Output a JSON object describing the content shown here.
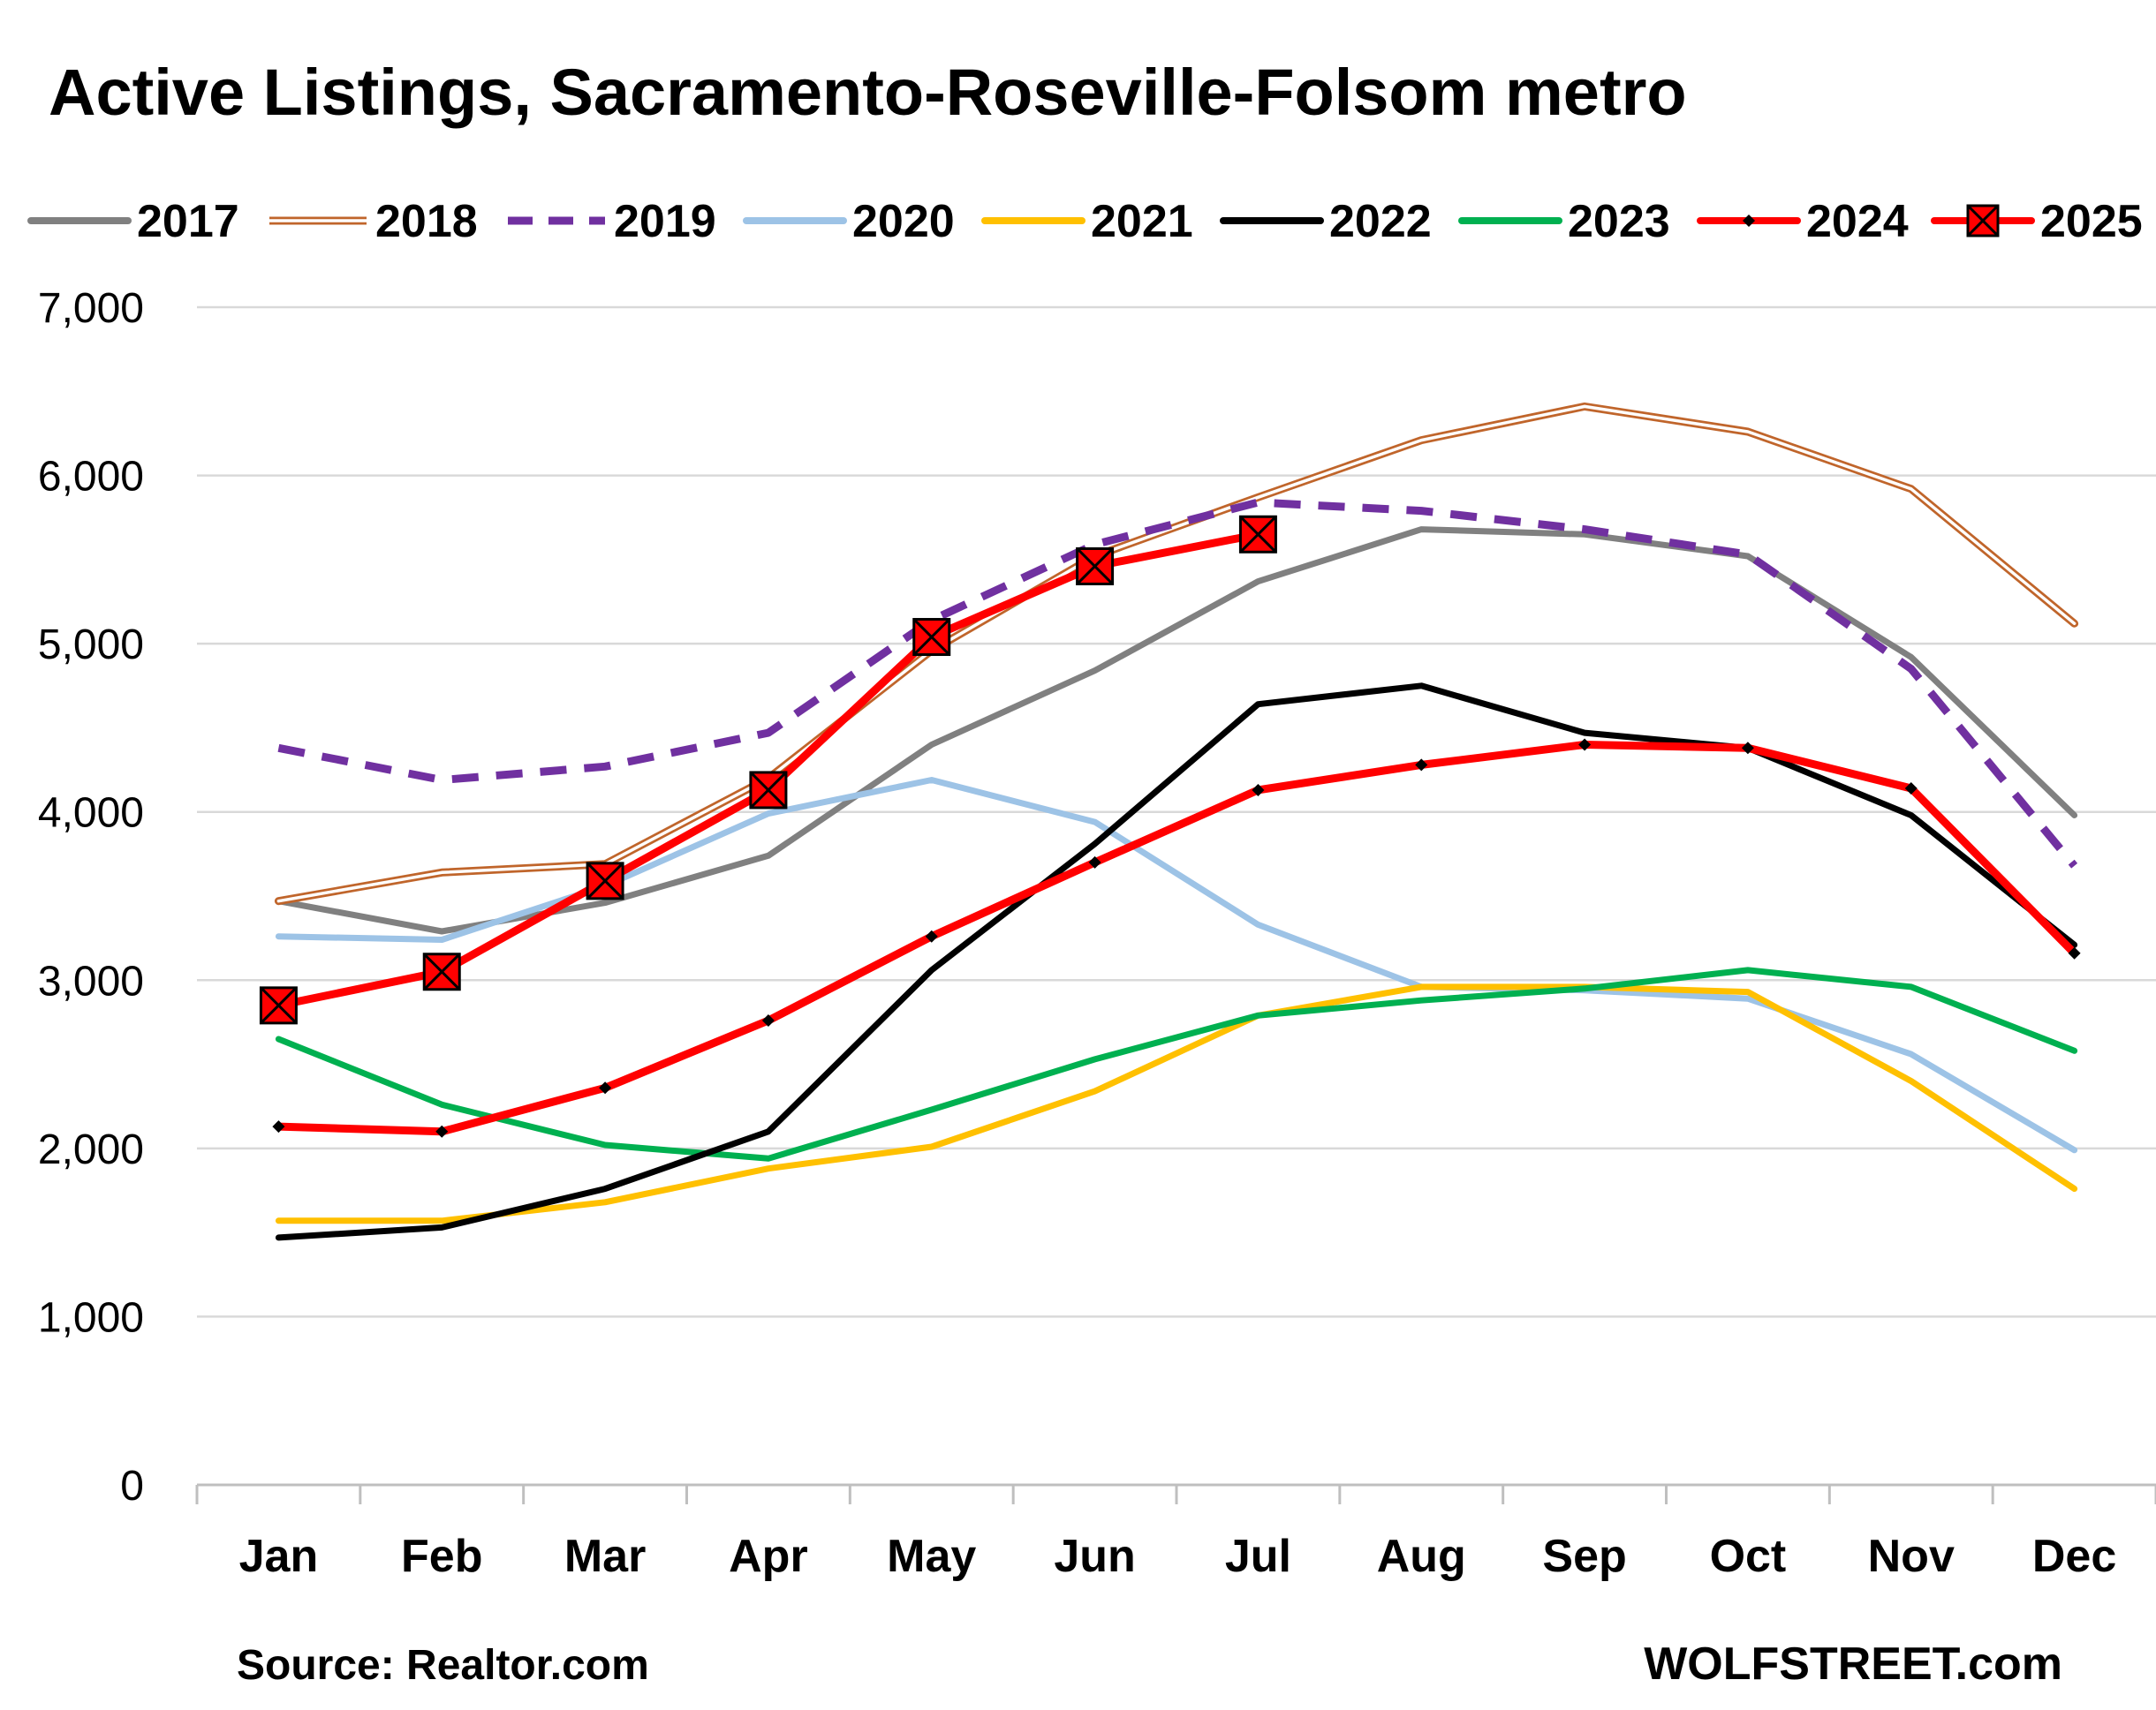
{
  "chart_data": {
    "type": "line",
    "title": "Active Listings, Sacramento-Roseville-Folsom metro",
    "categories": [
      "Jan",
      "Feb",
      "Mar",
      "Apr",
      "May",
      "Jun",
      "Jul",
      "Aug",
      "Sep",
      "Oct",
      "Nov",
      "Dec"
    ],
    "ylim": [
      0,
      7000
    ],
    "yticks": [
      "0",
      "1,000",
      "2,000",
      "3,000",
      "4,000",
      "5,000",
      "6,000",
      "7,000"
    ],
    "grid": "horizontal",
    "legend_position": "top",
    "series": [
      {
        "name": "2017",
        "color": "#808080",
        "style": "solid",
        "values": [
          3470,
          3290,
          3460,
          3740,
          4400,
          4840,
          5370,
          5680,
          5650,
          5520,
          4920,
          3980
        ]
      },
      {
        "name": "2018",
        "color": "#C0652B",
        "style": "double",
        "values": [
          3470,
          3640,
          3690,
          4200,
          4960,
          5520,
          5870,
          6210,
          6410,
          6260,
          5920,
          5120
        ]
      },
      {
        "name": "2019",
        "color": "#7030A0",
        "style": "dashed",
        "values": [
          4380,
          4190,
          4270,
          4470,
          5140,
          5590,
          5840,
          5790,
          5680,
          5530,
          4850,
          3680
        ]
      },
      {
        "name": "2020",
        "color": "#9DC3E6",
        "style": "solid",
        "values": [
          3260,
          3240,
          3560,
          3990,
          4190,
          3940,
          3330,
          2960,
          2940,
          2890,
          2560,
          1990
        ]
      },
      {
        "name": "2021",
        "color": "#FFC000",
        "style": "solid",
        "values": [
          1570,
          1570,
          1680,
          1880,
          2010,
          2340,
          2790,
          2960,
          2960,
          2930,
          2400,
          1760
        ]
      },
      {
        "name": "2022",
        "color": "#000000",
        "style": "solid",
        "values": [
          1470,
          1530,
          1760,
          2100,
          3060,
          3810,
          4640,
          4750,
          4470,
          4380,
          3980,
          3210
        ]
      },
      {
        "name": "2023",
        "color": "#00B050",
        "style": "solid",
        "values": [
          2650,
          2260,
          2020,
          1940,
          2230,
          2530,
          2790,
          2880,
          2950,
          3060,
          2960,
          2580
        ]
      },
      {
        "name": "2024",
        "color": "#FF0000",
        "style": "solid-diamond",
        "values": [
          2130,
          2100,
          2360,
          2760,
          3260,
          3700,
          4130,
          4280,
          4400,
          4380,
          4140,
          3160
        ]
      },
      {
        "name": "2025",
        "color": "#FF0000",
        "style": "solid-xbox",
        "values": [
          2850,
          3050,
          3590,
          4130,
          5040,
          5460,
          5650,
          null,
          null,
          null,
          null,
          null
        ]
      }
    ],
    "source": "Source: Realtor.com",
    "brand": "WOLFSTREET.com"
  }
}
